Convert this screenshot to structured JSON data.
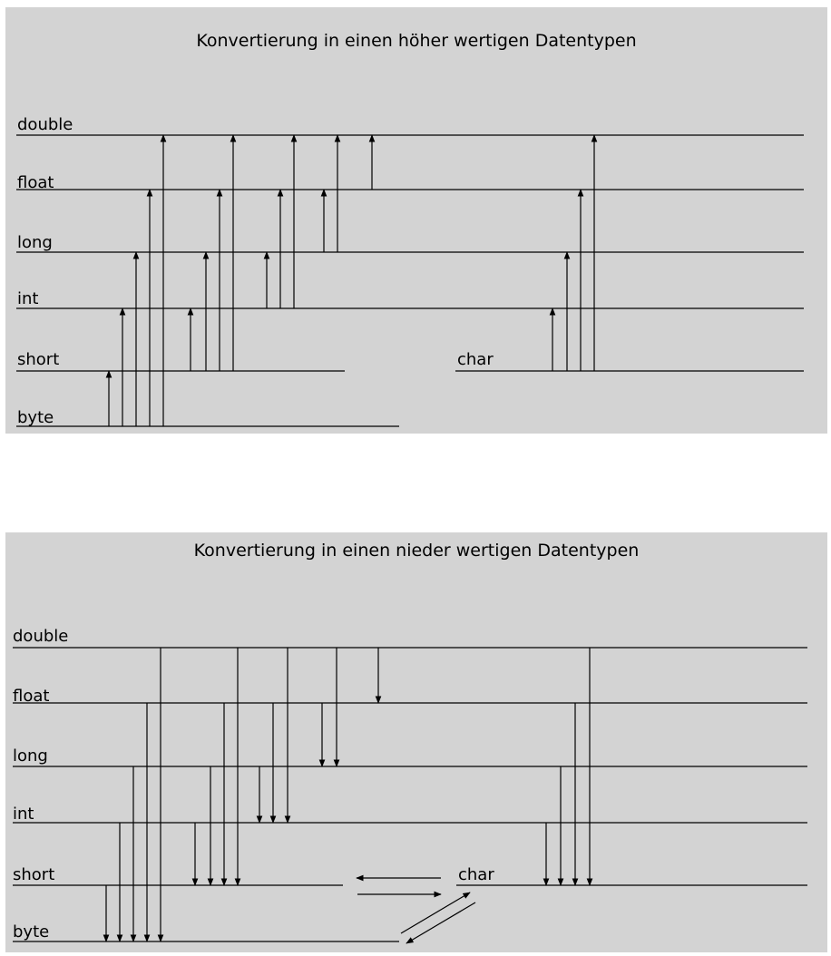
{
  "top": {
    "title": "Konvertierung in einen höher wertigen Datentypen",
    "labels": {
      "double": "double",
      "float": "float",
      "long": "long",
      "int": "int",
      "short": "short",
      "byte": "byte",
      "char": "char"
    }
  },
  "bottom": {
    "title": "Konvertierung in einen nieder wertigen Datentypen",
    "labels": {
      "double": "double",
      "float": "float",
      "long": "long",
      "int": "int",
      "short": "short",
      "byte": "byte",
      "char": "char"
    }
  }
}
